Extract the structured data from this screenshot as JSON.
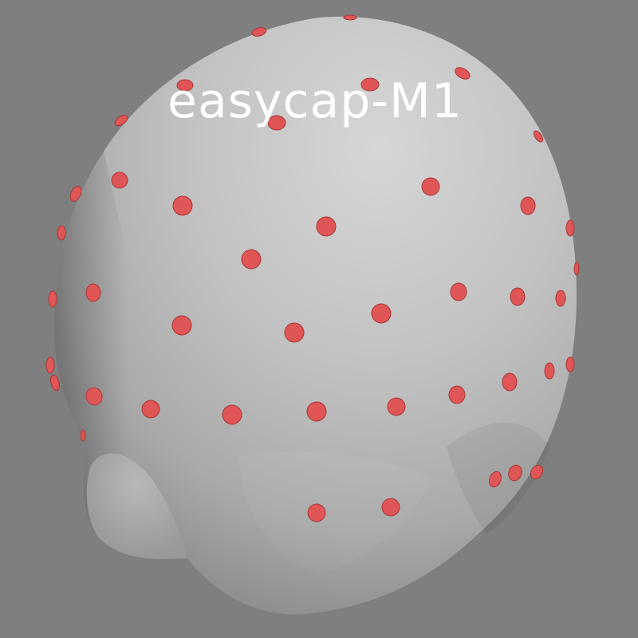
{
  "title": "easycap-M1",
  "colors": {
    "background": "#7f7f7f",
    "head_surface": "#c9c9c9",
    "electrode": "#e05555",
    "title_text": "#ffffff"
  }
}
